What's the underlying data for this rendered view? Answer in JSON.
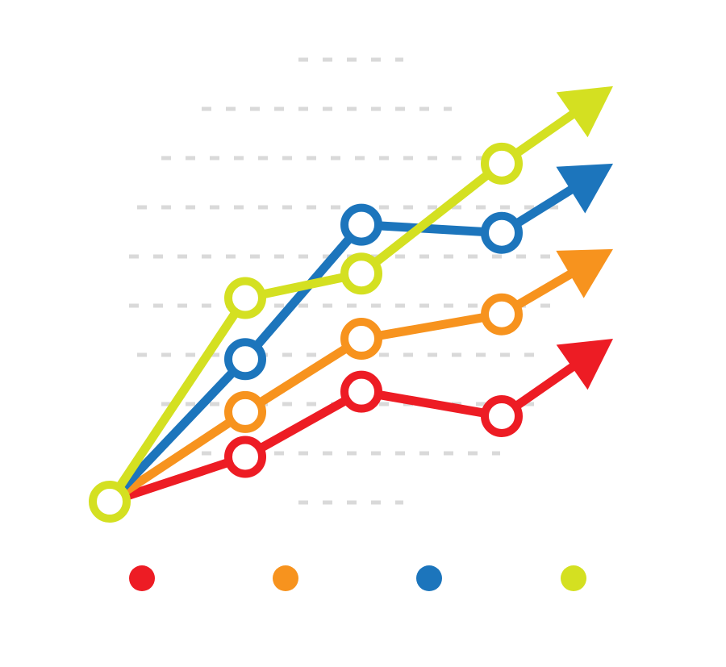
{
  "chart_data": {
    "type": "line",
    "title": "",
    "xlabel": "",
    "ylabel": "",
    "x": [
      0,
      1,
      2,
      3
    ],
    "ylim": [
      0,
      9
    ],
    "grid": true,
    "legend": "bottom",
    "series": [
      {
        "color": "#ED1C24",
        "values": [
          0,
          1.1,
          2.7,
          2.1
        ],
        "arrow_tip": [
          5.2,
          4.0
        ]
      },
      {
        "color": "#F7931E",
        "values": [
          0,
          2.2,
          4.0,
          4.6
        ],
        "arrow_tip": [
          5.2,
          6.2
        ]
      },
      {
        "color": "#1C75BC",
        "values": [
          0,
          3.5,
          6.8,
          6.6
        ],
        "arrow_tip": [
          5.2,
          8.3
        ]
      },
      {
        "color": "#D4E021",
        "values": [
          0,
          5.0,
          5.6,
          8.3
        ],
        "arrow_tip": [
          5.2,
          10.2
        ]
      }
    ],
    "start_marker_color": "#D4E021",
    "grid_color": "#D9D9D9"
  }
}
